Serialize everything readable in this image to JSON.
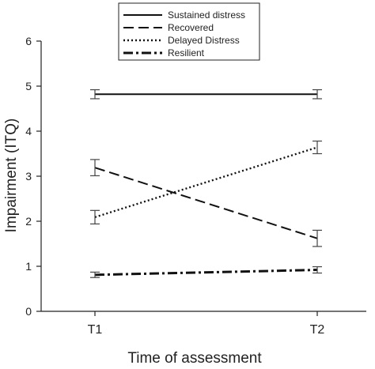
{
  "chart_data": {
    "type": "line",
    "xlabel": "Time of assessment",
    "ylabel": "Impairment (ITQ)",
    "categories": [
      "T1",
      "T2"
    ],
    "ylim": [
      0,
      6
    ],
    "yticks": [
      "0",
      "1",
      "2",
      "3",
      "4",
      "5",
      "6"
    ],
    "grid": false,
    "legend_position": "top",
    "series": [
      {
        "name": "Sustained distress",
        "style": "solid",
        "values": [
          4.82,
          4.82
        ],
        "error": [
          0.1,
          0.1
        ]
      },
      {
        "name": "Recovered",
        "style": "dashed",
        "values": [
          3.19,
          1.62
        ],
        "error": [
          0.18,
          0.18
        ]
      },
      {
        "name": "Delayed Distress",
        "style": "dotted",
        "values": [
          2.09,
          3.64
        ],
        "error": [
          0.15,
          0.14
        ]
      },
      {
        "name": "Resilient",
        "style": "dashdot",
        "values": [
          0.81,
          0.92
        ],
        "error": [
          0.06,
          0.07
        ]
      }
    ]
  }
}
